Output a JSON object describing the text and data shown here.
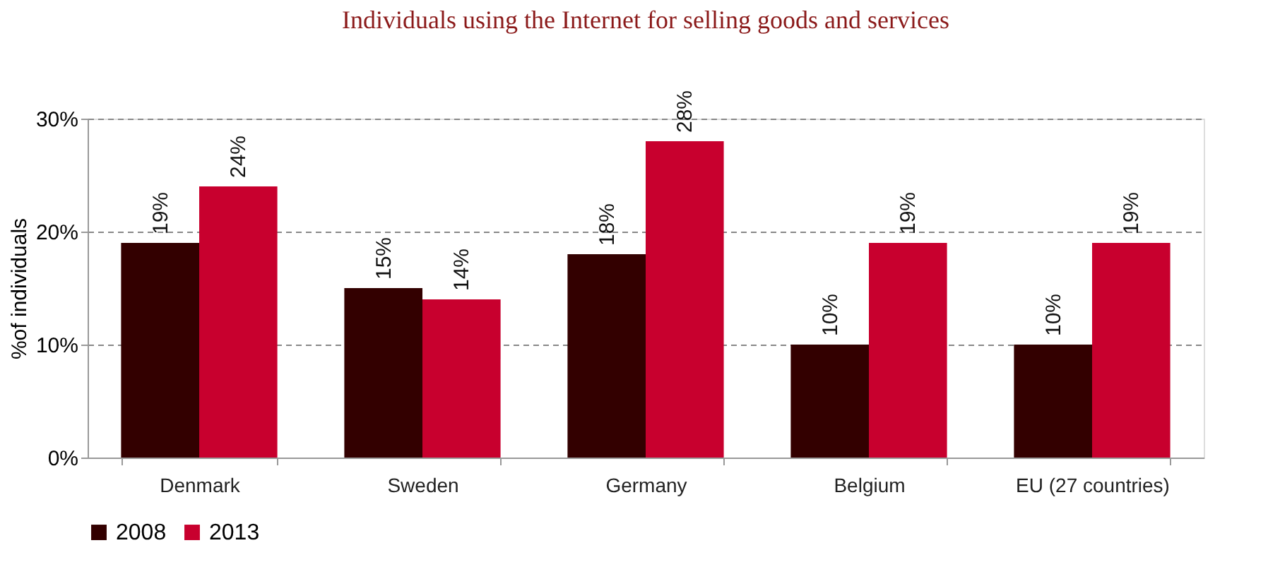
{
  "chart_data": {
    "type": "bar",
    "title": "Individuals using the Internet for selling goods and services",
    "ylabel": "%of individuals",
    "categories": [
      "Denmark",
      "Sweden",
      "Germany",
      "Belgium",
      "EU  (27 countries)"
    ],
    "series": [
      {
        "name": "2008",
        "color": "#330000",
        "values": [
          19,
          15,
          18,
          10,
          10
        ],
        "value_labels": [
          "19%",
          "15%",
          "18%",
          "10%",
          "10%"
        ]
      },
      {
        "name": "2013",
        "color": "#c8002e",
        "values": [
          24,
          14,
          28,
          19,
          19
        ],
        "value_labels": [
          "24%",
          "14%",
          "28%",
          "19%",
          "19%"
        ]
      }
    ],
    "ylim": [
      0,
      30
    ],
    "yticks": [
      {
        "value": 0,
        "label": "0%"
      },
      {
        "value": 10,
        "label": "10%"
      },
      {
        "value": 20,
        "label": "20%"
      },
      {
        "value": 30,
        "label": "30%"
      }
    ],
    "grid": "y",
    "legend": "bottom"
  }
}
